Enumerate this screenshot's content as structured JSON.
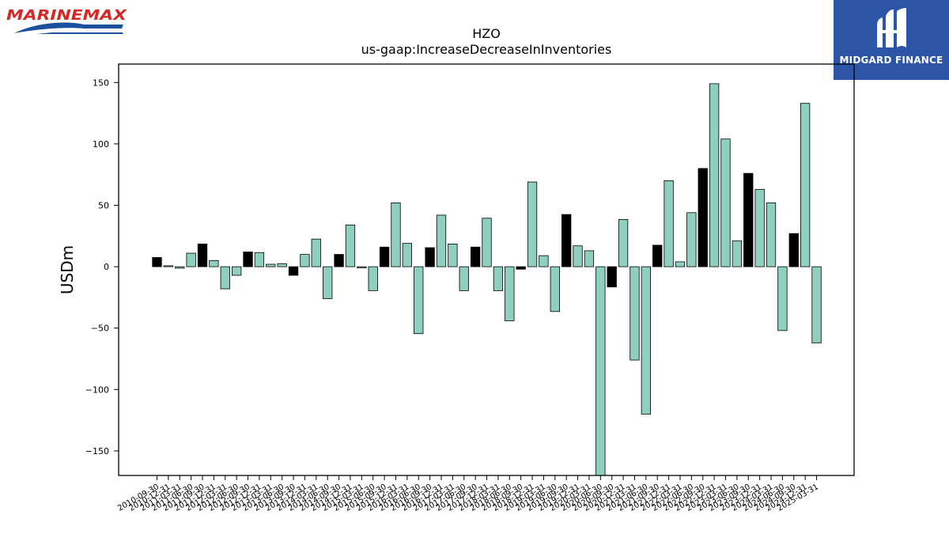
{
  "logos": {
    "left_brand": "MARINEMAX",
    "right_brand": "MIDGARD FINANCE"
  },
  "chart_data": {
    "type": "bar",
    "title": "HZO",
    "subtitle": "us-gaap:IncreaseDecreaseInInventories",
    "ylabel": "USDm",
    "xlabel": "",
    "ylim": [
      -170,
      165
    ],
    "yticks": [
      -150,
      -100,
      -50,
      0,
      50,
      100,
      150
    ],
    "grid": false,
    "legend": "none",
    "colors": {
      "q1_q3": "#8ecfc0",
      "fiscal_year": "#000000",
      "edge": "#000000"
    },
    "categories": [
      "2010-09-30",
      "2010-12-31",
      "2011-03-31",
      "2011-06-30",
      "2011-09-30",
      "2011-12-31",
      "2012-03-31",
      "2012-06-30",
      "2012-09-30",
      "2012-12-31",
      "2013-03-31",
      "2013-06-30",
      "2013-09-30",
      "2013-12-31",
      "2014-03-31",
      "2014-06-30",
      "2014-09-30",
      "2014-12-31",
      "2015-03-31",
      "2015-06-30",
      "2015-09-30",
      "2015-12-31",
      "2016-03-31",
      "2016-06-30",
      "2016-09-30",
      "2016-12-31",
      "2017-03-31",
      "2017-06-30",
      "2017-09-30",
      "2017-12-31",
      "2018-03-31",
      "2018-06-30",
      "2018-09-30",
      "2018-12-31",
      "2019-03-31",
      "2019-06-30",
      "2019-09-30",
      "2019-12-31",
      "2020-03-31",
      "2020-06-30",
      "2020-09-30",
      "2020-12-31",
      "2021-03-31",
      "2021-06-30",
      "2021-09-30",
      "2021-12-31",
      "2022-03-31",
      "2022-06-30",
      "2022-09-30",
      "2022-12-31",
      "2023-03-31",
      "2023-06-30",
      "2023-09-30",
      "2023-12-31",
      "2024-03-31",
      "2024-06-30",
      "2024-09-30",
      "2024-12-31",
      "2025-03-31"
    ],
    "values": [
      7.5,
      0.8,
      -1.2,
      11,
      18.5,
      5,
      -18,
      -7,
      12,
      11.5,
      2,
      2.5,
      -7,
      10,
      22.5,
      -26,
      10,
      34,
      -1,
      -19.5,
      16,
      52,
      19,
      -54.5,
      15.5,
      42,
      18.5,
      -19.5,
      16,
      39.5,
      -19.5,
      -44,
      -2,
      69,
      9,
      -36.5,
      42.5,
      17,
      13,
      -170,
      -16.5,
      38.5,
      -76,
      -120,
      17.5,
      70,
      4,
      44,
      80,
      149,
      104,
      21,
      76,
      63,
      52,
      -52,
      27,
      133,
      -62
    ],
    "fiscal_year_flags": [
      1,
      0,
      0,
      0,
      1,
      0,
      0,
      0,
      1,
      0,
      0,
      0,
      1,
      0,
      0,
      0,
      1,
      0,
      0,
      0,
      1,
      0,
      0,
      0,
      1,
      0,
      0,
      0,
      1,
      0,
      0,
      0,
      1,
      0,
      0,
      0,
      1,
      0,
      0,
      0,
      1,
      0,
      0,
      0,
      1,
      0,
      0,
      0,
      1,
      0,
      0,
      0,
      1,
      0,
      0,
      0,
      1,
      0,
      0
    ]
  }
}
